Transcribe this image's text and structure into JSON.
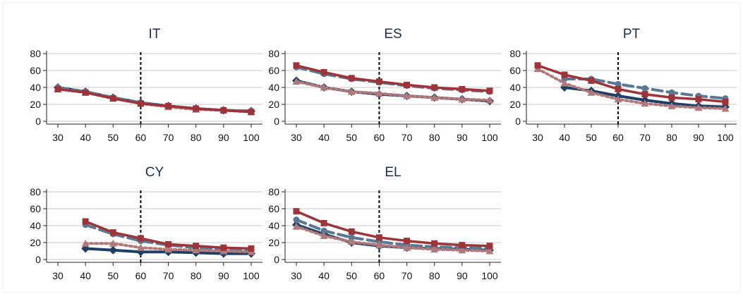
{
  "colors": {
    "s1": "#1f3f66",
    "s2": "#5b7792",
    "s3": "#b07a7c",
    "s4": "#9c3439",
    "grid": "#c9c9c9",
    "title": "#1a2f4f",
    "frame": "#e6e6e6"
  },
  "chart_data": [
    {
      "type": "line",
      "title": "IT",
      "x_ticks": [
        "30",
        "40",
        "50",
        "60",
        "70",
        "80",
        "90",
        "100"
      ],
      "y_ticks": [
        "0",
        "20",
        "40",
        "60",
        "80"
      ],
      "xlim": [
        30,
        100
      ],
      "ylim": [
        0,
        80
      ],
      "reference_x": 60,
      "grid": true,
      "series": [
        {
          "x": [
            30,
            40,
            50,
            60,
            70,
            80,
            90,
            100
          ],
          "values": [
            40,
            35,
            28,
            22,
            18,
            15,
            13,
            12
          ]
        },
        {
          "x": [
            30,
            40,
            50,
            60,
            70,
            80,
            90,
            100
          ],
          "values": [
            40,
            35,
            28,
            22,
            18,
            15,
            13,
            12
          ]
        },
        {
          "x": [
            30,
            40,
            50,
            60,
            70,
            80,
            90,
            100
          ],
          "values": [
            38,
            34,
            27,
            21,
            17,
            14,
            13,
            11
          ]
        },
        {
          "x": [
            30,
            40,
            50,
            60,
            70,
            80,
            90,
            100
          ],
          "values": [
            38,
            34,
            27,
            21,
            18,
            15,
            13,
            11
          ]
        }
      ]
    },
    {
      "type": "line",
      "title": "ES",
      "x_ticks": [
        "30",
        "40",
        "50",
        "60",
        "70",
        "80",
        "90",
        "100"
      ],
      "y_ticks": [
        "0",
        "20",
        "40",
        "60",
        "80"
      ],
      "xlim": [
        30,
        100
      ],
      "ylim": [
        0,
        80
      ],
      "reference_x": 60,
      "grid": true,
      "series": [
        {
          "x": [
            30,
            40,
            50,
            60,
            70,
            80,
            90,
            100
          ],
          "values": [
            48,
            40,
            35,
            32,
            30,
            28,
            26,
            24
          ]
        },
        {
          "x": [
            30,
            40,
            50,
            60,
            70,
            80,
            90,
            100
          ],
          "values": [
            64,
            56,
            50,
            46,
            42,
            39,
            37,
            35
          ]
        },
        {
          "x": [
            30,
            40,
            50,
            60,
            70,
            80,
            90,
            100
          ],
          "values": [
            47,
            40,
            35,
            33,
            30,
            28,
            26,
            25
          ]
        },
        {
          "x": [
            30,
            40,
            50,
            60,
            70,
            80,
            90,
            100
          ],
          "values": [
            66,
            58,
            51,
            47,
            43,
            40,
            38,
            36
          ]
        }
      ]
    },
    {
      "type": "line",
      "title": "PT",
      "x_ticks": [
        "30",
        "40",
        "50",
        "60",
        "70",
        "80",
        "90",
        "100"
      ],
      "y_ticks": [
        "0",
        "20",
        "40",
        "60",
        "80"
      ],
      "xlim": [
        30,
        100
      ],
      "ylim": [
        0,
        80
      ],
      "reference_x": 60,
      "grid": true,
      "series": [
        {
          "x": [
            40,
            50,
            60,
            70,
            80,
            90,
            100
          ],
          "values": [
            40,
            36,
            30,
            25,
            21,
            18,
            17
          ]
        },
        {
          "x": [
            40,
            50,
            60,
            70,
            80,
            90,
            100
          ],
          "values": [
            50,
            50,
            44,
            39,
            34,
            30,
            27
          ]
        },
        {
          "x": [
            30,
            40,
            50,
            60,
            70,
            80,
            90,
            100
          ],
          "values": [
            62,
            45,
            34,
            26,
            21,
            18,
            16,
            15
          ]
        },
        {
          "x": [
            30,
            40,
            50,
            60,
            70,
            80,
            90,
            100
          ],
          "values": [
            66,
            55,
            48,
            38,
            32,
            28,
            26,
            23
          ]
        }
      ]
    },
    {
      "type": "line",
      "title": "CY",
      "x_ticks": [
        "30",
        "40",
        "50",
        "60",
        "70",
        "80",
        "90",
        "100"
      ],
      "y_ticks": [
        "0",
        "20",
        "40",
        "60",
        "80"
      ],
      "xlim": [
        30,
        100
      ],
      "ylim": [
        0,
        80
      ],
      "reference_x": 60,
      "grid": true,
      "series": [
        {
          "x": [
            40,
            50,
            60,
            70,
            80,
            90,
            100
          ],
          "values": [
            13,
            11,
            9,
            9,
            8,
            7,
            7
          ]
        },
        {
          "x": [
            40,
            50,
            60,
            70,
            80,
            90,
            100
          ],
          "values": [
            41,
            30,
            22,
            17,
            14,
            12,
            11
          ]
        },
        {
          "x": [
            40,
            50,
            60,
            70,
            80,
            90,
            100
          ],
          "values": [
            19,
            19,
            14,
            12,
            11,
            10,
            9
          ]
        },
        {
          "x": [
            40,
            50,
            60,
            70,
            80,
            90,
            100
          ],
          "values": [
            45,
            32,
            25,
            18,
            16,
            14,
            13
          ]
        }
      ]
    },
    {
      "type": "line",
      "title": "EL",
      "x_ticks": [
        "30",
        "40",
        "50",
        "60",
        "70",
        "80",
        "90",
        "100"
      ],
      "y_ticks": [
        "0",
        "20",
        "40",
        "60",
        "80"
      ],
      "xlim": [
        30,
        100
      ],
      "ylim": [
        0,
        80
      ],
      "reference_x": 60,
      "grid": true,
      "series": [
        {
          "x": [
            30,
            40,
            50,
            60,
            70,
            80,
            90,
            100
          ],
          "values": [
            41,
            30,
            20,
            16,
            14,
            13,
            12,
            11
          ]
        },
        {
          "x": [
            30,
            40,
            50,
            60,
            70,
            80,
            90,
            100
          ],
          "values": [
            47,
            34,
            26,
            21,
            17,
            15,
            14,
            13
          ]
        },
        {
          "x": [
            30,
            40,
            50,
            60,
            70,
            80,
            90,
            100
          ],
          "values": [
            39,
            28,
            21,
            17,
            14,
            12,
            11,
            10
          ]
        },
        {
          "x": [
            30,
            40,
            50,
            60,
            70,
            80,
            90,
            100
          ],
          "values": [
            57,
            43,
            33,
            26,
            22,
            19,
            17,
            16
          ]
        }
      ]
    }
  ]
}
